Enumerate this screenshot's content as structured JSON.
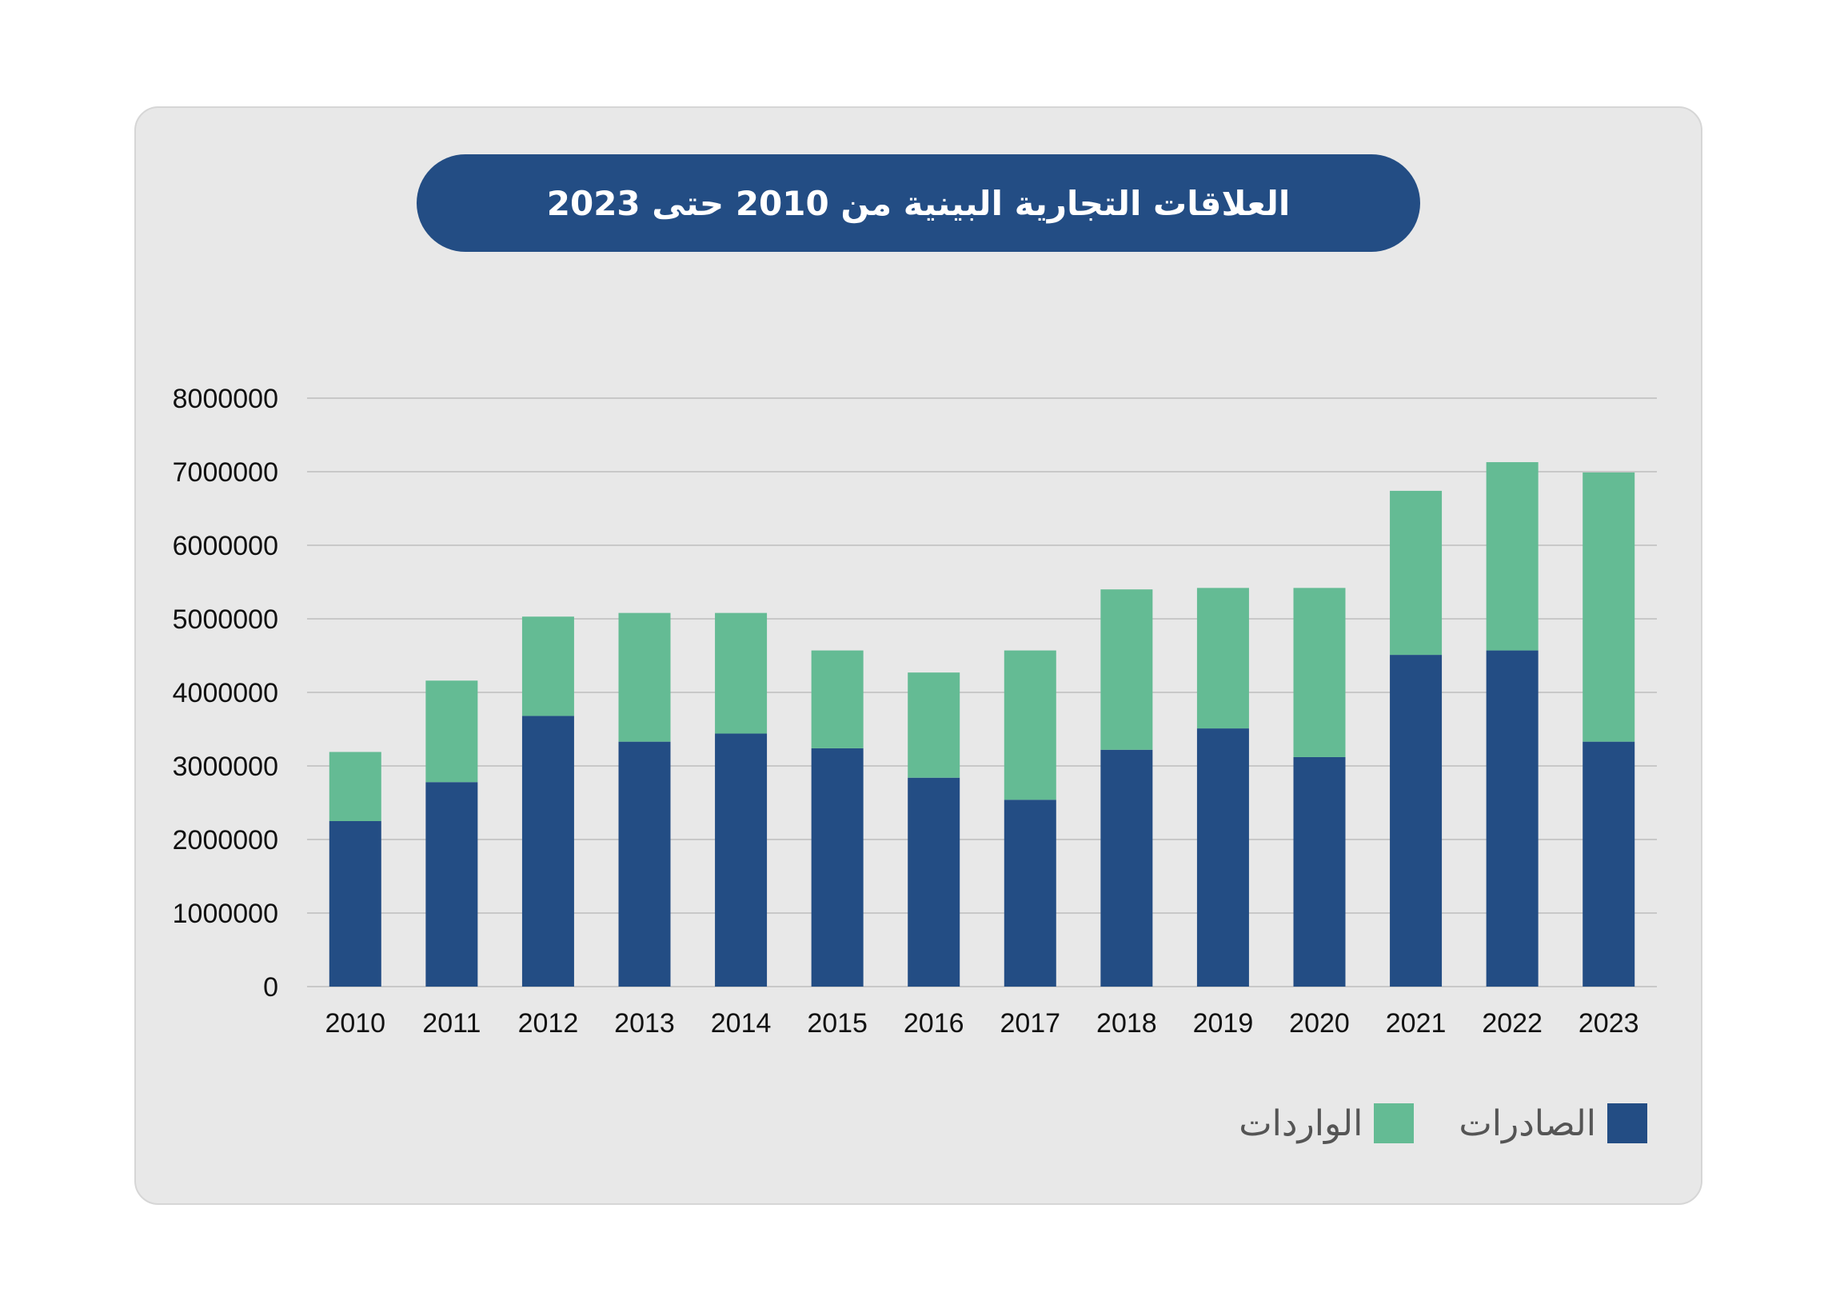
{
  "colors": {
    "exports": "#234d84",
    "imports": "#64bb94",
    "grid": "#c8c8c8"
  },
  "chart_data": {
    "type": "bar",
    "stacked": true,
    "title": "العلاقات التجارية البينية من 2010 حتى 2023",
    "xlabel": "",
    "ylabel": "",
    "ylim": [
      0,
      8000000
    ],
    "yticks": [
      0,
      1000000,
      2000000,
      3000000,
      4000000,
      5000000,
      6000000,
      7000000,
      8000000
    ],
    "ytick_labels": [
      "0",
      "1000000",
      "2000000",
      "3000000",
      "4000000",
      "5000000",
      "6000000",
      "7000000",
      "8000000"
    ],
    "grid": true,
    "legend_position": "bottom-right",
    "categories": [
      "2010",
      "2011",
      "2012",
      "2013",
      "2014",
      "2015",
      "2016",
      "2017",
      "2018",
      "2019",
      "2020",
      "2021",
      "2022",
      "2023"
    ],
    "series": [
      {
        "name": "الصادرات",
        "color": "#234d84",
        "values": [
          2250000,
          2780000,
          3680000,
          3330000,
          3440000,
          3240000,
          2840000,
          2540000,
          3220000,
          3510000,
          3120000,
          4510000,
          4570000,
          3330000
        ]
      },
      {
        "name": "الواردات",
        "color": "#64bb94",
        "values": [
          940000,
          1380000,
          1350000,
          1750000,
          1640000,
          1330000,
          1430000,
          2030000,
          2180000,
          1910000,
          2300000,
          2230000,
          2560000,
          3660000
        ]
      }
    ]
  },
  "legend": {
    "items": [
      {
        "label": "الصادرات",
        "color": "#234d84"
      },
      {
        "label": "الواردات",
        "color": "#64bb94"
      }
    ]
  }
}
